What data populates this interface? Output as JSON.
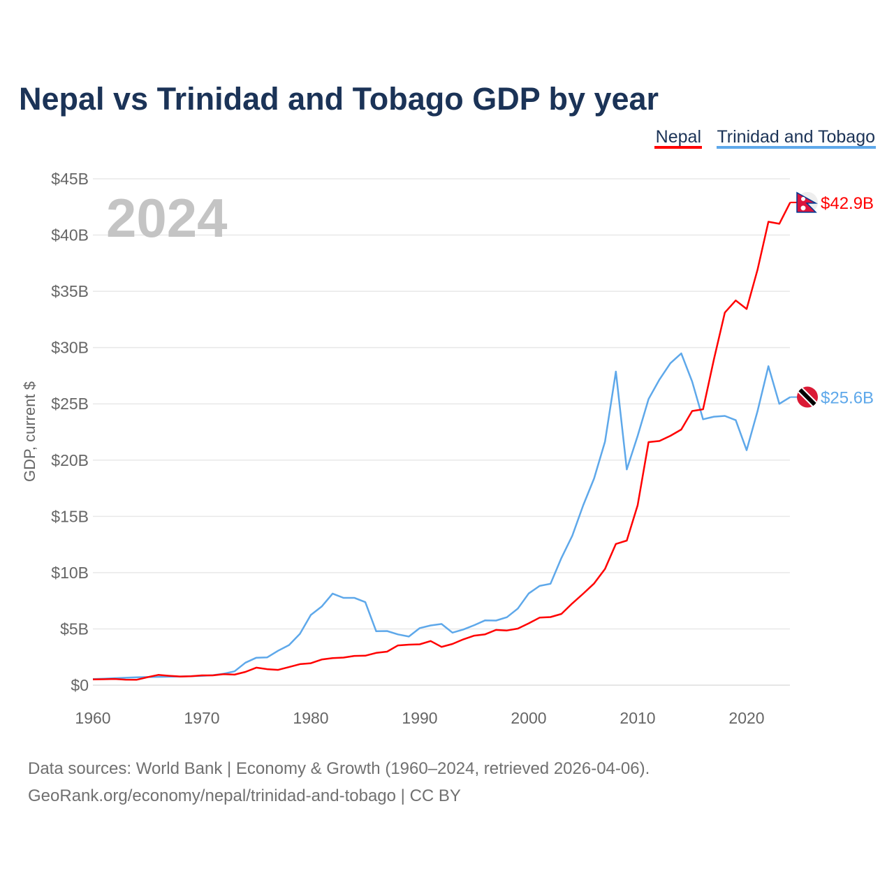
{
  "chart_data": {
    "type": "line",
    "title": "Nepal vs Trinidad and Tobago GDP by year",
    "xlabel": "",
    "ylabel": "GDP, current $",
    "xlim": [
      1960,
      2024
    ],
    "ylim": [
      0,
      45
    ],
    "x_ticks": [
      "1960",
      "1970",
      "1980",
      "1990",
      "2000",
      "2010",
      "2020"
    ],
    "y_ticks": [
      "$0",
      "$5B",
      "$10B",
      "$15B",
      "$20B",
      "$25B",
      "$30B",
      "$35B",
      "$40B",
      "$45B"
    ],
    "grid": true,
    "legend_placement": "top-right",
    "current_year": "2024",
    "x": [
      1960,
      1961,
      1962,
      1963,
      1964,
      1965,
      1966,
      1967,
      1968,
      1969,
      1970,
      1971,
      1972,
      1973,
      1974,
      1975,
      1976,
      1977,
      1978,
      1979,
      1980,
      1981,
      1982,
      1983,
      1984,
      1985,
      1986,
      1987,
      1988,
      1989,
      1990,
      1991,
      1992,
      1993,
      1994,
      1995,
      1996,
      1997,
      1998,
      1999,
      2000,
      2001,
      2002,
      2003,
      2004,
      2005,
      2006,
      2007,
      2008,
      2009,
      2010,
      2011,
      2012,
      2013,
      2014,
      2015,
      2016,
      2017,
      2018,
      2019,
      2020,
      2021,
      2022,
      2023,
      2024
    ],
    "series": [
      {
        "name": "Nepal",
        "color": "#ff0000",
        "end_label": "$42.9B",
        "values": [
          0.51,
          0.53,
          0.55,
          0.49,
          0.48,
          0.71,
          0.91,
          0.83,
          0.77,
          0.79,
          0.87,
          0.87,
          0.98,
          0.94,
          1.18,
          1.56,
          1.42,
          1.36,
          1.61,
          1.87,
          1.95,
          2.28,
          2.4,
          2.45,
          2.6,
          2.62,
          2.87,
          2.98,
          3.53,
          3.6,
          3.63,
          3.92,
          3.4,
          3.66,
          4.07,
          4.4,
          4.52,
          4.91,
          4.86,
          5.03,
          5.49,
          6.0,
          6.05,
          6.33,
          7.27,
          8.13,
          9.04,
          10.33,
          12.55,
          12.85,
          16.0,
          21.6,
          21.7,
          22.16,
          22.72,
          24.36,
          24.52,
          28.97,
          33.11,
          34.19,
          33.43,
          36.92,
          41.18,
          41.0,
          42.9
        ]
      },
      {
        "name": "Trinidad and Tobago",
        "color": "#5ea8ea",
        "end_label": "$25.6B",
        "values": [
          0.54,
          0.57,
          0.62,
          0.66,
          0.7,
          0.72,
          0.74,
          0.75,
          0.77,
          0.8,
          0.82,
          0.89,
          1.02,
          1.23,
          2.0,
          2.44,
          2.47,
          3.06,
          3.56,
          4.56,
          6.24,
          6.99,
          8.14,
          7.76,
          7.76,
          7.38,
          4.79,
          4.81,
          4.51,
          4.32,
          5.07,
          5.31,
          5.44,
          4.67,
          4.95,
          5.33,
          5.76,
          5.74,
          6.04,
          6.81,
          8.15,
          8.82,
          9.01,
          11.3,
          13.28,
          15.98,
          18.37,
          21.64,
          27.87,
          19.17,
          22.16,
          25.43,
          27.16,
          28.61,
          29.48,
          26.98,
          23.63,
          23.86,
          23.93,
          23.55,
          20.88,
          24.35,
          28.35,
          25.0,
          25.6
        ]
      }
    ]
  },
  "footer": {
    "line1": "Data sources: World Bank | Economy & Growth (1960–2024, retrieved 2026-04-06).",
    "line2": "GeoRank.org/economy/nepal/trinidad-and-tobago | CC BY"
  }
}
